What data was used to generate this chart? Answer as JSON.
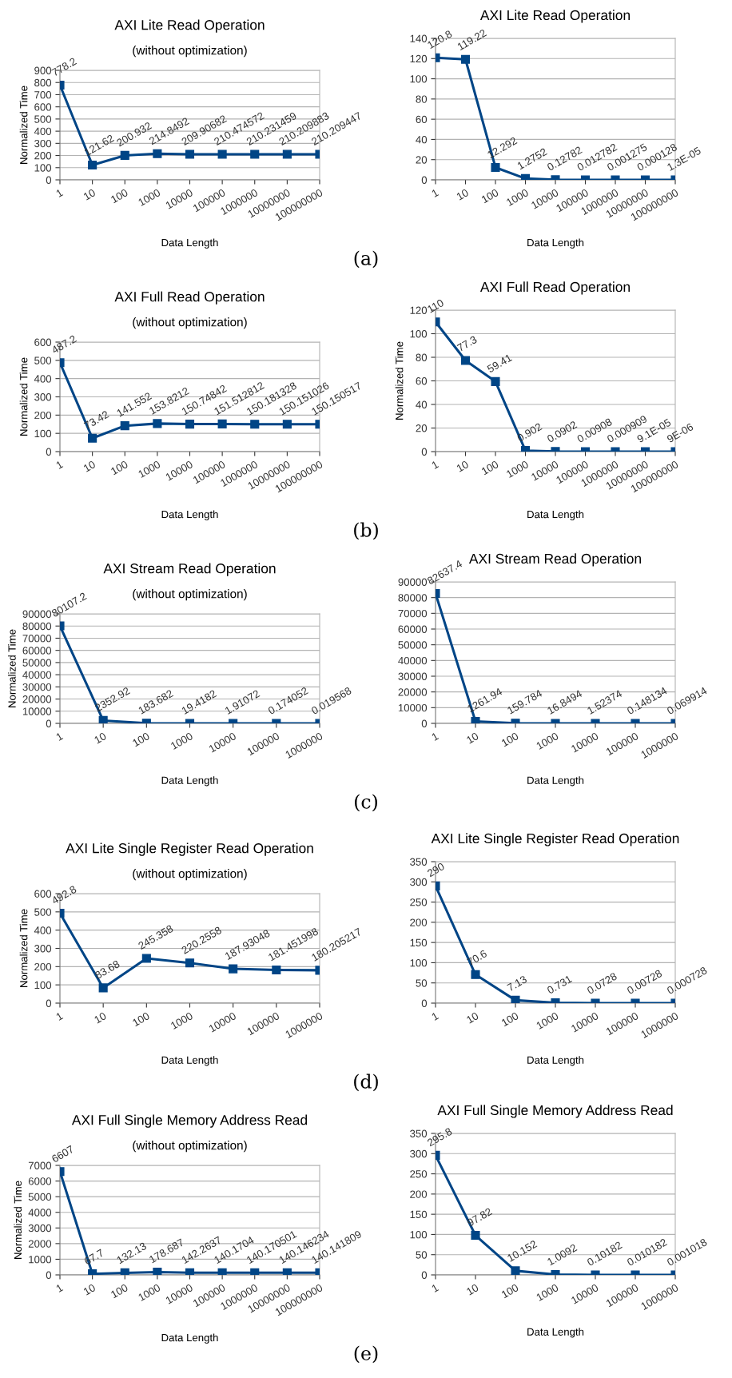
{
  "chart_data": [
    {
      "type": "line",
      "title": "AXI Lite Read Operation",
      "subtitle": "(without optimization)",
      "xlabel": "Data Length",
      "ylabel": "Normalized Time",
      "categories": [
        "1",
        "10",
        "100",
        "1000",
        "10000",
        "100000",
        "1000000",
        "10000000",
        "100000000"
      ],
      "ylim": [
        0,
        900
      ],
      "yticks": [
        0,
        100,
        200,
        300,
        400,
        500,
        600,
        700,
        800,
        900
      ],
      "grid": "y",
      "marker": "square",
      "annotations": [
        "(a)"
      ],
      "series": [
        {
          "color": "#004586",
          "values": [
            778.2,
            121.62,
            200.932,
            214.8492,
            209.90682,
            210.474572,
            210.231459,
            210.209883,
            210.209447
          ],
          "value_labels": [
            "778.2",
            "121.62",
            "200.932",
            "214.8492",
            "209.90682",
            "210.474572",
            "210.231459",
            "210.209883",
            "210.209447"
          ]
        }
      ]
    },
    {
      "type": "line",
      "title": "AXI Lite Read Operation",
      "xlabel": "Data Length",
      "categories": [
        "1",
        "10",
        "100",
        "1000",
        "10000",
        "100000",
        "1000000",
        "10000000",
        "100000000"
      ],
      "ylim": [
        0,
        140
      ],
      "yticks": [
        0,
        20,
        40,
        60,
        80,
        100,
        120,
        140
      ],
      "grid": "y",
      "marker": "square",
      "series": [
        {
          "color": "#004586",
          "values": [
            120.8,
            119.22,
            12.292,
            1.2752,
            0.12782,
            0.012782,
            0.001275,
            0.000128,
            1.3e-05
          ],
          "value_labels": [
            "120.8",
            "119.22",
            "12.292",
            "1.2752",
            "0.12782",
            "0.012782",
            "0.001275",
            "0.000128",
            "1.3E-05"
          ]
        }
      ]
    },
    {
      "type": "line",
      "title": "AXI Full Read Operation",
      "subtitle": "(without optimization)",
      "xlabel": "Data Length",
      "ylabel": "Normalized Time",
      "categories": [
        "1",
        "10",
        "100",
        "1000",
        "10000",
        "100000",
        "1000000",
        "10000000",
        "100000000"
      ],
      "ylim": [
        0,
        600
      ],
      "yticks": [
        0,
        100,
        200,
        300,
        400,
        500,
        600
      ],
      "grid": "y",
      "marker": "square",
      "annotations": [
        "(b)"
      ],
      "series": [
        {
          "color": "#004586",
          "values": [
            487.2,
            73.42,
            141.552,
            153.8212,
            150.74842,
            151.512812,
            150.181328,
            150.151026,
            150.150517
          ],
          "value_labels": [
            "487.2",
            "73.42",
            "141.552",
            "153.8212",
            "150.74842",
            "151.512812",
            "150.181328",
            "150.151026",
            "150.150517"
          ]
        }
      ]
    },
    {
      "type": "line",
      "title": "AXI Full Read Operation",
      "xlabel": "Data Length",
      "ylabel": "Normalized Time",
      "categories": [
        "1",
        "10",
        "100",
        "1000",
        "10000",
        "100000",
        "1000000",
        "10000000",
        "100000000"
      ],
      "ylim": [
        0,
        120
      ],
      "yticks": [
        0,
        20,
        40,
        60,
        80,
        100,
        120
      ],
      "grid": "y",
      "marker": "square",
      "series": [
        {
          "color": "#004586",
          "values": [
            110,
            77.3,
            59.41,
            0.902,
            0.0902,
            0.00908,
            0.000909,
            9.1e-05,
            9e-06
          ],
          "value_labels": [
            "110",
            "77.3",
            "59.41",
            "0.902",
            "0.0902",
            "0.00908",
            "0.000909",
            "9.1E-05",
            "9E-06"
          ]
        }
      ]
    },
    {
      "type": "line",
      "title": "AXI Stream Read Operation",
      "subtitle": "(without optimization)",
      "xlabel": "Data Length",
      "ylabel": "Normalized Time",
      "categories": [
        "1",
        "10",
        "100",
        "1000",
        "10000",
        "100000",
        "1000000"
      ],
      "ylim": [
        0,
        90000
      ],
      "yticks": [
        0,
        10000,
        20000,
        30000,
        40000,
        50000,
        60000,
        70000,
        80000,
        90000
      ],
      "grid": "y",
      "marker": "square",
      "annotations": [
        "(c)"
      ],
      "series": [
        {
          "color": "#004586",
          "values": [
            80107.2,
            2352.92,
            183.682,
            19.4182,
            1.91072,
            0.174052,
            0.019568
          ],
          "value_labels": [
            "80107.2",
            "2352.92",
            "183.682",
            "19.4182",
            "1.91072",
            "0.174052",
            "0.019568"
          ]
        }
      ]
    },
    {
      "type": "line",
      "title": "AXI Stream Read Operation",
      "xlabel": "Data Length",
      "categories": [
        "1",
        "10",
        "100",
        "1000",
        "10000",
        "100000",
        "1000000"
      ],
      "ylim": [
        0,
        90000
      ],
      "yticks": [
        0,
        10000,
        20000,
        30000,
        40000,
        50000,
        60000,
        70000,
        80000,
        90000
      ],
      "grid": "y",
      "marker": "square",
      "series": [
        {
          "color": "#004586",
          "values": [
            82637.4,
            1261.94,
            159.784,
            16.8494,
            1.52374,
            0.148134,
            0.069914
          ],
          "value_labels": [
            "82637.4",
            "1261.94",
            "159.784",
            "16.8494",
            "1.52374",
            "0.148134",
            "0.069914"
          ]
        }
      ]
    },
    {
      "type": "line",
      "title": "AXI Lite Single Register Read Operation",
      "subtitle": "(without optimization)",
      "xlabel": "Data Length",
      "ylabel": "Normalized Time",
      "categories": [
        "1",
        "10",
        "100",
        "1000",
        "10000",
        "100000",
        "1000000"
      ],
      "ylim": [
        0,
        600
      ],
      "yticks": [
        0,
        100,
        200,
        300,
        400,
        500,
        600
      ],
      "grid": "y",
      "marker": "square",
      "annotations": [
        "(d)"
      ],
      "series": [
        {
          "color": "#004586",
          "values": [
            492.8,
            83.68,
            245.358,
            220.2558,
            187.93048,
            181.451998,
            180.205217
          ],
          "value_labels": [
            "492.8",
            "83.68",
            "245.358",
            "220.2558",
            "187.93048",
            "181.451998",
            "180.205217"
          ]
        }
      ]
    },
    {
      "type": "line",
      "title": "AXI Lite Single Register Read Operation",
      "xlabel": "Data Length",
      "categories": [
        "1",
        "10",
        "100",
        "1000",
        "10000",
        "100000",
        "1000000"
      ],
      "ylim": [
        0,
        350
      ],
      "yticks": [
        0,
        50,
        100,
        150,
        200,
        250,
        300,
        350
      ],
      "grid": "y",
      "marker": "square",
      "series": [
        {
          "color": "#004586",
          "values": [
            290,
            70.6,
            7.13,
            0.731,
            0.0728,
            0.00728,
            0.000728
          ],
          "value_labels": [
            "290",
            "70.6",
            "7.13",
            "0.731",
            "0.0728",
            "0.00728",
            "0.000728"
          ]
        }
      ]
    },
    {
      "type": "line",
      "title": "AXI Full Single Memory Address Read",
      "subtitle": "(without optimization)",
      "xlabel": "Data Length",
      "ylabel": "Normalized Time",
      "categories": [
        "1",
        "10",
        "100",
        "1000",
        "10000",
        "100000",
        "1000000",
        "10000000",
        "100000000"
      ],
      "ylim": [
        0,
        7000
      ],
      "yticks": [
        0,
        1000,
        2000,
        3000,
        4000,
        5000,
        6000,
        7000
      ],
      "grid": "y",
      "marker": "square",
      "annotations": [
        "(e)"
      ],
      "series": [
        {
          "color": "#004586",
          "values": [
            6607,
            67.7,
            132.13,
            178.687,
            142.2637,
            140.1704,
            140.170501,
            140.146234,
            140.141809
          ],
          "value_labels": [
            "6607",
            "67.7",
            "132.13",
            "178.687",
            "142.2637",
            "140.1704",
            "140.170501",
            "140.146234",
            "140.141809"
          ]
        }
      ]
    },
    {
      "type": "line",
      "title": "AXI Full Single Memory Address Read",
      "xlabel": "Data Length",
      "categories": [
        "1",
        "10",
        "100",
        "1000",
        "10000",
        "100000",
        "1000000"
      ],
      "ylim": [
        0,
        350
      ],
      "yticks": [
        0,
        50,
        100,
        150,
        200,
        250,
        300,
        350
      ],
      "grid": "y",
      "marker": "square",
      "series": [
        {
          "color": "#004586",
          "values": [
            295.8,
            97.82,
            10.152,
            1.0092,
            0.10182,
            0.010182,
            0.001018
          ],
          "value_labels": [
            "295.8",
            "97.82",
            "10.152",
            "1.0092",
            "0.10182",
            "0.010182",
            "0.001018"
          ]
        }
      ]
    }
  ]
}
